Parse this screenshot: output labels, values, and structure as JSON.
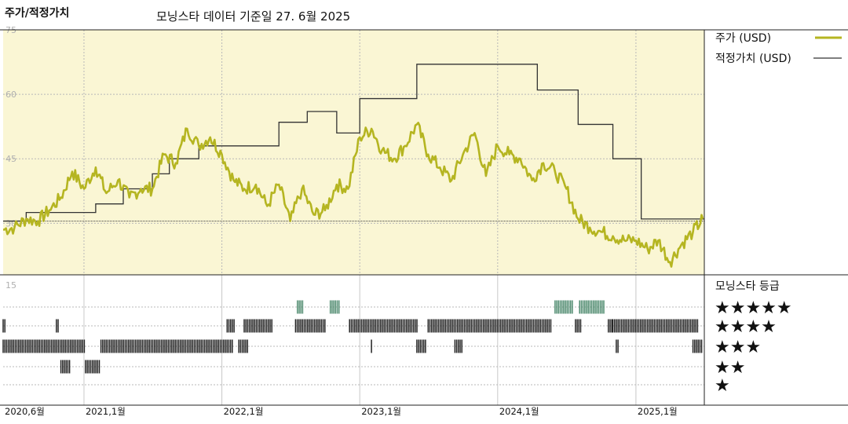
{
  "title": "주가/적정가치",
  "subtitle": "모닝스타 데이터 기준일 27. 6월 2025",
  "chart_data": [
    {
      "type": "line",
      "yticks": [
        30,
        45,
        60,
        75
      ],
      "ylim": [
        18,
        75
      ],
      "xlim": [
        "2020-06-01",
        "2025-07-01"
      ],
      "grid": true,
      "reference_line": 30.5,
      "legend": {
        "position": "right",
        "entries": [
          {
            "label": "주가 (USD)",
            "color": "#b5b521"
          },
          {
            "label": "적정가치 (USD)",
            "color": "#333333"
          }
        ]
      },
      "series": [
        {
          "name": "적정가치 (USD)",
          "type": "step",
          "color": "#333333",
          "points": [
            [
              "2020-06-01",
              30.5
            ],
            [
              "2020-08-01",
              32.5
            ],
            [
              "2021-02-01",
              34.5
            ],
            [
              "2021-04-15",
              38
            ],
            [
              "2021-07-01",
              41.5
            ],
            [
              "2021-08-15",
              45
            ],
            [
              "2021-11-01",
              48
            ],
            [
              "2022-02-01",
              48
            ],
            [
              "2022-06-01",
              53.5
            ],
            [
              "2022-08-15",
              56
            ],
            [
              "2022-11-01",
              51
            ],
            [
              "2023-01-01",
              59
            ],
            [
              "2023-05-15",
              59
            ],
            [
              "2023-06-01",
              67
            ],
            [
              "2024-04-15",
              61
            ],
            [
              "2024-08-01",
              53
            ],
            [
              "2024-11-01",
              45
            ],
            [
              "2025-01-15",
              31
            ],
            [
              "2025-06-27",
              31
            ]
          ]
        },
        {
          "name": "주가 (USD)",
          "type": "line",
          "color": "#b5b521",
          "points": [
            [
              "2020-06-01",
              28.5
            ],
            [
              "2020-07-01",
              29
            ],
            [
              "2020-08-01",
              31
            ],
            [
              "2020-09-01",
              30.5
            ],
            [
              "2020-10-01",
              33
            ],
            [
              "2020-11-01",
              36
            ],
            [
              "2020-12-01",
              42
            ],
            [
              "2021-01-01",
              38
            ],
            [
              "2021-02-01",
              43
            ],
            [
              "2021-03-01",
              37
            ],
            [
              "2021-04-01",
              40
            ],
            [
              "2021-05-01",
              36
            ],
            [
              "2021-06-01",
              38
            ],
            [
              "2021-07-01",
              38
            ],
            [
              "2021-08-01",
              46
            ],
            [
              "2021-09-01",
              44
            ],
            [
              "2021-10-01",
              52
            ],
            [
              "2021-11-01",
              48
            ],
            [
              "2021-12-01",
              50
            ],
            [
              "2022-01-01",
              46
            ],
            [
              "2022-02-01",
              40
            ],
            [
              "2022-03-01",
              38
            ],
            [
              "2022-04-01",
              39
            ],
            [
              "2022-05-01",
              34
            ],
            [
              "2022-06-01",
              39
            ],
            [
              "2022-07-01",
              30.5
            ],
            [
              "2022-08-01",
              38
            ],
            [
              "2022-09-01",
              32
            ],
            [
              "2022-10-01",
              33
            ],
            [
              "2022-11-01",
              39
            ],
            [
              "2022-12-01",
              38
            ],
            [
              "2023-01-01",
              50
            ],
            [
              "2023-02-01",
              52
            ],
            [
              "2023-03-01",
              47
            ],
            [
              "2023-04-01",
              45
            ],
            [
              "2023-05-01",
              48
            ],
            [
              "2023-06-01",
              53
            ],
            [
              "2023-07-01",
              46
            ],
            [
              "2023-08-01",
              43
            ],
            [
              "2023-09-01",
              40
            ],
            [
              "2023-10-01",
              46
            ],
            [
              "2023-11-01",
              51
            ],
            [
              "2023-12-01",
              41
            ],
            [
              "2024-01-01",
              48
            ],
            [
              "2024-02-01",
              46
            ],
            [
              "2024-03-01",
              45
            ],
            [
              "2024-04-01",
              40
            ],
            [
              "2024-05-01",
              44
            ],
            [
              "2024-06-01",
              42
            ],
            [
              "2024-07-01",
              38
            ],
            [
              "2024-08-01",
              31
            ],
            [
              "2024-09-01",
              29
            ],
            [
              "2024-10-01",
              28
            ],
            [
              "2024-11-01",
              27
            ],
            [
              "2024-12-01",
              26
            ],
            [
              "2025-01-01",
              26
            ],
            [
              "2025-02-01",
              24
            ],
            [
              "2025-03-01",
              26
            ],
            [
              "2025-04-01",
              21
            ],
            [
              "2025-05-01",
              25
            ],
            [
              "2025-06-01",
              28
            ],
            [
              "2025-06-27",
              31
            ]
          ]
        }
      ]
    },
    {
      "type": "heatmap",
      "title": "모닝스타 등급",
      "ytick": "15",
      "xtick_labels": [
        "2020,6월",
        "2021,1월",
        "2022,1월",
        "2023,1월",
        "2024,1월",
        "2025,1월"
      ],
      "xtick_dates": [
        "2020-06-01",
        "2021-01-01",
        "2022-01-01",
        "2023-01-01",
        "2024-01-01",
        "2025-01-01"
      ],
      "rows": [
        {
          "label": "★★★★★",
          "stars": 5,
          "color": "#4e8a6e",
          "periods": [
            [
              "2022-07-20",
              "2022-08-05"
            ],
            [
              "2022-10-15",
              "2022-11-10"
            ],
            [
              "2024-06-01",
              "2024-07-20"
            ],
            [
              "2024-08-05",
              "2024-10-10"
            ]
          ]
        },
        {
          "label": "★★★★",
          "stars": 4,
          "color": "#222222",
          "periods": [
            [
              "2020-06-01",
              "2020-06-06"
            ],
            [
              "2020-10-20",
              "2020-10-25"
            ],
            [
              "2022-01-15",
              "2022-02-05"
            ],
            [
              "2022-03-01",
              "2022-05-15"
            ],
            [
              "2022-07-15",
              "2022-10-05"
            ],
            [
              "2022-12-05",
              "2023-06-05"
            ],
            [
              "2023-07-01",
              "2024-05-25"
            ],
            [
              "2024-07-25",
              "2024-08-10"
            ],
            [
              "2024-10-20",
              "2024-10-30"
            ],
            [
              "2024-11-01",
              "2025-06-15"
            ]
          ]
        },
        {
          "label": "★★★",
          "stars": 3,
          "color": "#222222",
          "periods": [
            [
              "2020-06-01",
              "2021-01-05"
            ],
            [
              "2021-02-15",
              "2022-02-01"
            ],
            [
              "2022-02-15",
              "2022-03-10"
            ],
            [
              "2023-02-01",
              "2023-02-05"
            ],
            [
              "2023-06-01",
              "2023-06-25"
            ],
            [
              "2023-09-10",
              "2023-10-01"
            ],
            [
              "2024-11-10",
              "2024-11-15"
            ],
            [
              "2025-06-01",
              "2025-06-27"
            ]
          ]
        },
        {
          "label": "★★",
          "stars": 2,
          "color": "#222222",
          "periods": [
            [
              "2020-11-01",
              "2020-11-25"
            ],
            [
              "2021-01-05",
              "2021-02-15"
            ]
          ]
        },
        {
          "label": "★",
          "stars": 1,
          "color": "#222222",
          "periods": []
        }
      ]
    }
  ]
}
